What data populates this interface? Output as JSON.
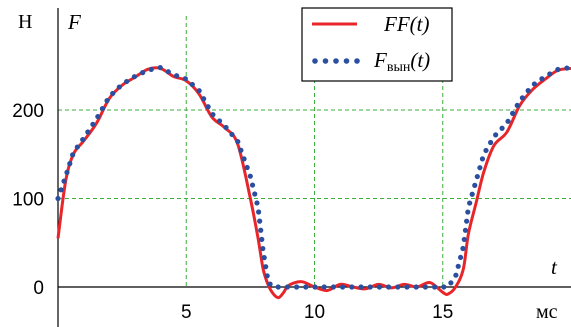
{
  "chart_data": {
    "type": "line",
    "x_ticks": [
      5,
      10,
      15
    ],
    "y_ticks": [
      0,
      100,
      200
    ],
    "xlim": [
      0,
      20
    ],
    "ylim": [
      0,
      265
    ],
    "x_unit": "мс",
    "x_symbol": "t",
    "y_unit": "Н",
    "y_symbol": "F",
    "grid": true,
    "legend_position": "top-right",
    "series": [
      {
        "name": "FF(t)",
        "style": "solid",
        "color": "#e8262a",
        "x": [
          0,
          0.3,
          0.6,
          1,
          1.5,
          2,
          2.5,
          3,
          3.5,
          4,
          4.5,
          5,
          5.5,
          6,
          6.5,
          7,
          7.5,
          7.8,
          8,
          8.2,
          8.4,
          8.6,
          8.8,
          9,
          9.5,
          10,
          10.5,
          11,
          11.5,
          12,
          12.5,
          13,
          13.5,
          14,
          14.5,
          15,
          15.2,
          15.5,
          15.8,
          16,
          16.3,
          16.6,
          17,
          17.5,
          18,
          18.5,
          19,
          19.5,
          20
        ],
        "y": [
          55,
          120,
          150,
          165,
          185,
          213,
          228,
          237,
          246,
          247,
          238,
          233,
          218,
          192,
          180,
          162,
          100,
          55,
          20,
          2,
          -8,
          -12,
          -6,
          2,
          6,
          0,
          -4,
          3,
          0,
          -2,
          3,
          -1,
          3,
          0,
          5,
          -6,
          -8,
          0,
          20,
          60,
          95,
          130,
          160,
          175,
          205,
          223,
          235,
          245,
          247
        ]
      },
      {
        "name": "F_вын(t)",
        "label_main": "F",
        "label_sub": "вын",
        "label_suffix": "(t)",
        "style": "dotted",
        "color": "#2a4fa0",
        "x": [
          0,
          0.3,
          0.6,
          1,
          1.5,
          2,
          2.5,
          3,
          3.5,
          4,
          4.5,
          5,
          5.5,
          6,
          6.5,
          7,
          7.5,
          7.8,
          8,
          8.2,
          8.4,
          8.6,
          8.8,
          9,
          9.5,
          10,
          10.5,
          11,
          11.5,
          12,
          12.5,
          13,
          13.5,
          14,
          14.5,
          15,
          15.2,
          15.5,
          15.8,
          16,
          16.3,
          16.6,
          17,
          17.5,
          18,
          18.5,
          19,
          19.5,
          20
        ],
        "y": [
          100,
          125,
          152,
          168,
          190,
          215,
          229,
          238,
          245,
          248,
          240,
          235,
          222,
          196,
          182,
          165,
          125,
          90,
          40,
          5,
          0,
          0,
          0,
          0,
          0,
          0,
          0,
          0,
          0,
          0,
          0,
          0,
          0,
          0,
          0,
          0,
          0,
          12,
          45,
          90,
          120,
          150,
          170,
          185,
          210,
          228,
          238,
          246,
          248
        ]
      }
    ]
  }
}
